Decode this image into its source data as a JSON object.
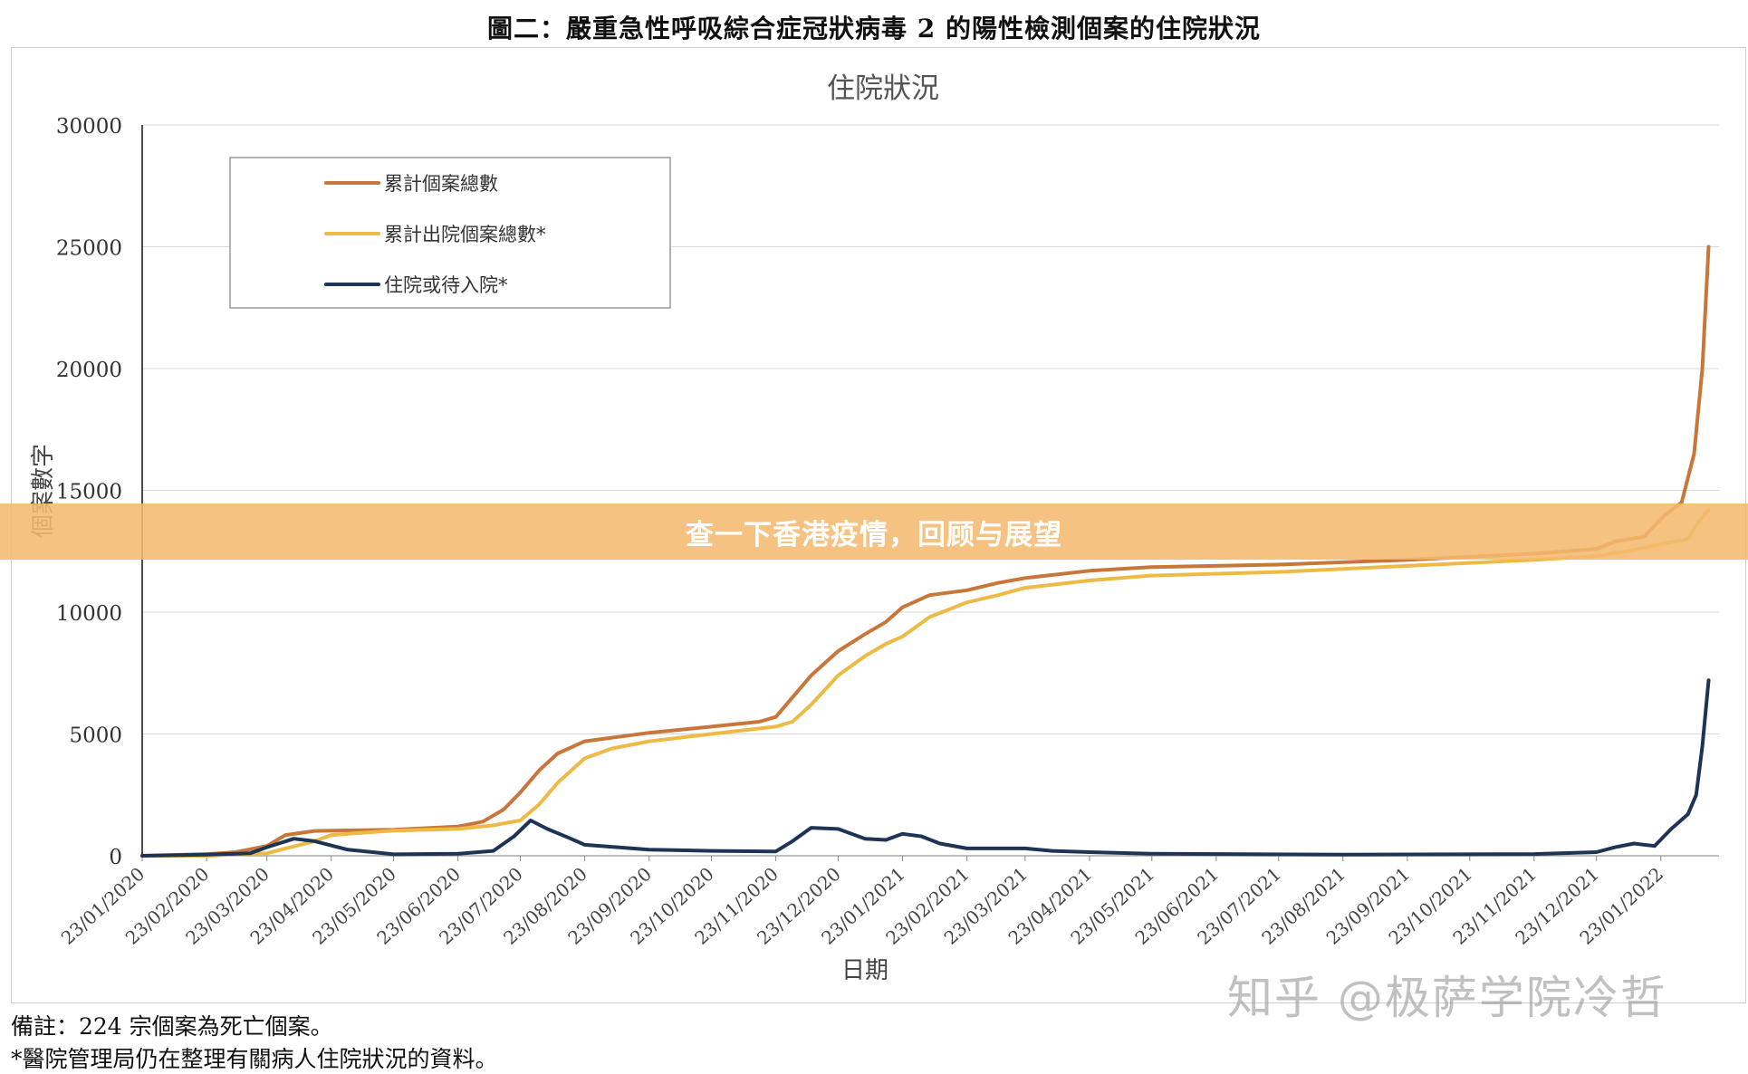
{
  "figure_title": "圖二：嚴重急性呼吸綜合症冠狀病毒 2 的陽性檢測個案的住院狀況",
  "banner": "查一下香港疫情，回顾与展望",
  "watermark": "知乎 @极萨学院冷哲",
  "notes": [
    "備註：224 宗個案為死亡個案。",
    "*醫院管理局仍在整理有關病人住院狀況的資料。"
  ],
  "chart_data": {
    "type": "line",
    "title": "住院狀況",
    "xlabel": "日期",
    "ylabel": "個案數字",
    "ylim": [
      0,
      30000
    ],
    "yticks": [
      "0",
      "5000",
      "10000",
      "15000",
      "20000",
      "25000",
      "30000"
    ],
    "grid": "horizontal",
    "legend_position": "top-left",
    "x_tick_labels": [
      "23/01/2020",
      "23/02/2020",
      "23/03/2020",
      "23/04/2020",
      "23/05/2020",
      "23/06/2020",
      "23/07/2020",
      "23/08/2020",
      "23/09/2020",
      "23/10/2020",
      "23/11/2020",
      "23/12/2020",
      "23/01/2021",
      "23/02/2021",
      "23/03/2021",
      "23/04/2021",
      "23/05/2021",
      "23/06/2021",
      "23/07/2021",
      "23/08/2021",
      "23/09/2021",
      "23/10/2021",
      "23/11/2021",
      "23/12/2021",
      "23/01/2022"
    ],
    "series": [
      {
        "name": "累計個案總數",
        "color": "#C8763A",
        "points": [
          [
            "23/01/2020",
            0
          ],
          [
            "23/02/2020",
            70
          ],
          [
            "08/03/2020",
            150
          ],
          [
            "23/03/2020",
            400
          ],
          [
            "01/04/2020",
            850
          ],
          [
            "15/04/2020",
            1020
          ],
          [
            "23/05/2020",
            1070
          ],
          [
            "23/06/2020",
            1200
          ],
          [
            "05/07/2020",
            1400
          ],
          [
            "15/07/2020",
            1900
          ],
          [
            "23/07/2020",
            2600
          ],
          [
            "01/08/2020",
            3500
          ],
          [
            "10/08/2020",
            4200
          ],
          [
            "23/08/2020",
            4700
          ],
          [
            "23/09/2020",
            5050
          ],
          [
            "23/10/2020",
            5300
          ],
          [
            "15/11/2020",
            5500
          ],
          [
            "23/11/2020",
            5700
          ],
          [
            "01/12/2020",
            6500
          ],
          [
            "10/12/2020",
            7400
          ],
          [
            "23/12/2020",
            8400
          ],
          [
            "05/01/2021",
            9100
          ],
          [
            "15/01/2021",
            9600
          ],
          [
            "23/01/2021",
            10200
          ],
          [
            "05/02/2021",
            10700
          ],
          [
            "23/02/2021",
            10900
          ],
          [
            "10/03/2021",
            11200
          ],
          [
            "23/03/2021",
            11400
          ],
          [
            "23/04/2021",
            11700
          ],
          [
            "23/05/2021",
            11850
          ],
          [
            "23/07/2021",
            11950
          ],
          [
            "23/09/2021",
            12150
          ],
          [
            "23/11/2021",
            12400
          ],
          [
            "23/12/2021",
            12600
          ],
          [
            "01/01/2022",
            12900
          ],
          [
            "15/01/2022",
            13100
          ],
          [
            "25/01/2022",
            14000
          ],
          [
            "02/02/2022",
            14500
          ],
          [
            "08/02/2022",
            16500
          ],
          [
            "12/02/2022",
            20000
          ],
          [
            "15/02/2022",
            25000
          ]
        ]
      },
      {
        "name": "累計出院個案總數*",
        "color": "#EDBB45",
        "points": [
          [
            "23/01/2020",
            0
          ],
          [
            "23/02/2020",
            0
          ],
          [
            "23/03/2020",
            100
          ],
          [
            "01/04/2020",
            300
          ],
          [
            "15/04/2020",
            600
          ],
          [
            "23/04/2020",
            850
          ],
          [
            "23/05/2020",
            1030
          ],
          [
            "23/06/2020",
            1100
          ],
          [
            "10/07/2020",
            1250
          ],
          [
            "23/07/2020",
            1450
          ],
          [
            "01/08/2020",
            2100
          ],
          [
            "10/08/2020",
            3000
          ],
          [
            "23/08/2020",
            4000
          ],
          [
            "05/09/2020",
            4400
          ],
          [
            "23/09/2020",
            4700
          ],
          [
            "23/10/2020",
            5000
          ],
          [
            "23/11/2020",
            5300
          ],
          [
            "01/12/2020",
            5500
          ],
          [
            "10/12/2020",
            6200
          ],
          [
            "23/12/2020",
            7400
          ],
          [
            "05/01/2021",
            8200
          ],
          [
            "15/01/2021",
            8700
          ],
          [
            "23/01/2021",
            9000
          ],
          [
            "05/02/2021",
            9800
          ],
          [
            "23/02/2021",
            10400
          ],
          [
            "10/03/2021",
            10700
          ],
          [
            "23/03/2021",
            11000
          ],
          [
            "23/04/2021",
            11300
          ],
          [
            "23/05/2021",
            11500
          ],
          [
            "23/07/2021",
            11650
          ],
          [
            "23/09/2021",
            11900
          ],
          [
            "23/11/2021",
            12150
          ],
          [
            "23/12/2021",
            12300
          ],
          [
            "10/01/2022",
            12550
          ],
          [
            "23/01/2022",
            12800
          ],
          [
            "05/02/2022",
            13000
          ],
          [
            "10/02/2022",
            13700
          ],
          [
            "15/02/2022",
            14200
          ]
        ]
      },
      {
        "name": "住院或待入院*",
        "color": "#1E3455",
        "points": [
          [
            "23/01/2020",
            0
          ],
          [
            "23/02/2020",
            50
          ],
          [
            "15/03/2020",
            100
          ],
          [
            "23/03/2020",
            350
          ],
          [
            "05/04/2020",
            700
          ],
          [
            "15/04/2020",
            600
          ],
          [
            "01/05/2020",
            250
          ],
          [
            "23/05/2020",
            60
          ],
          [
            "23/06/2020",
            80
          ],
          [
            "10/07/2020",
            200
          ],
          [
            "20/07/2020",
            800
          ],
          [
            "28/07/2020",
            1450
          ],
          [
            "05/08/2020",
            1100
          ],
          [
            "15/08/2020",
            750
          ],
          [
            "23/08/2020",
            450
          ],
          [
            "23/09/2020",
            250
          ],
          [
            "23/10/2020",
            200
          ],
          [
            "23/11/2020",
            180
          ],
          [
            "01/12/2020",
            600
          ],
          [
            "10/12/2020",
            1150
          ],
          [
            "23/12/2020",
            1100
          ],
          [
            "05/01/2021",
            700
          ],
          [
            "15/01/2021",
            650
          ],
          [
            "23/01/2021",
            900
          ],
          [
            "01/02/2021",
            800
          ],
          [
            "10/02/2021",
            500
          ],
          [
            "23/02/2021",
            300
          ],
          [
            "23/03/2021",
            300
          ],
          [
            "05/04/2021",
            200
          ],
          [
            "23/04/2021",
            150
          ],
          [
            "23/05/2021",
            80
          ],
          [
            "23/08/2021",
            50
          ],
          [
            "23/11/2021",
            70
          ],
          [
            "23/12/2021",
            150
          ],
          [
            "01/01/2022",
            350
          ],
          [
            "10/01/2022",
            500
          ],
          [
            "20/01/2022",
            400
          ],
          [
            "28/01/2022",
            1100
          ],
          [
            "05/02/2022",
            1700
          ],
          [
            "09/02/2022",
            2500
          ],
          [
            "12/02/2022",
            4500
          ],
          [
            "15/02/2022",
            7200
          ]
        ]
      }
    ]
  }
}
